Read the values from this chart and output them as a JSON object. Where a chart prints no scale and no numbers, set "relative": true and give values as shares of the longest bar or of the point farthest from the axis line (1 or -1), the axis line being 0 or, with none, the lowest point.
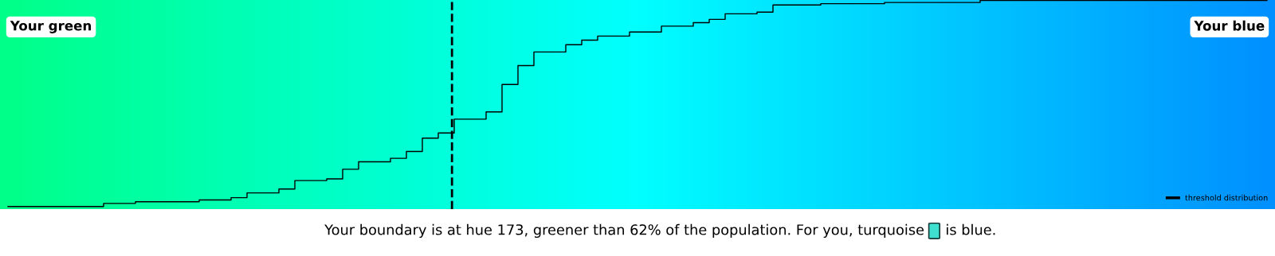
{
  "chart_data": {
    "type": "step",
    "relative": true,
    "categories": [
      null,
      null,
      null,
      null,
      null,
      null,
      null,
      null,
      null,
      null,
      null,
      null,
      null,
      null,
      null,
      null,
      null,
      null,
      null,
      null,
      null,
      null,
      null,
      null,
      null,
      null,
      null,
      null,
      null,
      null,
      null,
      null,
      null,
      null,
      null,
      null,
      null,
      null,
      null,
      null,
      null,
      null,
      null,
      null,
      null,
      null,
      null,
      null,
      null,
      null,
      null,
      null,
      null,
      null,
      null,
      null,
      null,
      null,
      null,
      null,
      null,
      null,
      null,
      null,
      null,
      null,
      null,
      null,
      null,
      null,
      null,
      null,
      null,
      null,
      null,
      null,
      null,
      null,
      null,
      null
    ],
    "series": [
      {
        "name": "threshold distribution",
        "color": "#000000",
        "values": [
          0,
          0,
          0,
          0,
          0,
          0,
          0.015,
          0.015,
          0.023,
          0.023,
          0.023,
          0.023,
          0.032,
          0.032,
          0.043,
          0.066,
          0.066,
          0.085,
          0.126,
          0.126,
          0.134,
          0.181,
          0.217,
          0.217,
          0.234,
          0.267,
          0.332,
          0.357,
          0.424,
          0.424,
          0.459,
          0.592,
          0.684,
          0.75,
          0.75,
          0.785,
          0.807,
          0.827,
          0.827,
          0.847,
          0.847,
          0.875,
          0.875,
          0.892,
          0.908,
          0.935,
          0.935,
          0.943,
          0.978,
          0.978,
          0.978,
          0.984,
          0.984,
          0.984,
          0.984,
          0.99,
          0.99,
          0.99,
          0.99,
          0.99,
          0.99,
          1,
          1,
          1,
          1,
          1,
          1,
          1,
          1,
          1,
          1,
          1,
          1,
          1,
          1,
          1,
          1,
          1,
          1,
          1
        ]
      }
    ],
    "annotations": [
      "Your green",
      "Your blue",
      "Your boundary is at hue 173, greener than 62% of the population. For you, turquoise",
      "is blue."
    ],
    "legend": "bottom right",
    "line_style": "solid",
    "marker": "none"
  }
}
